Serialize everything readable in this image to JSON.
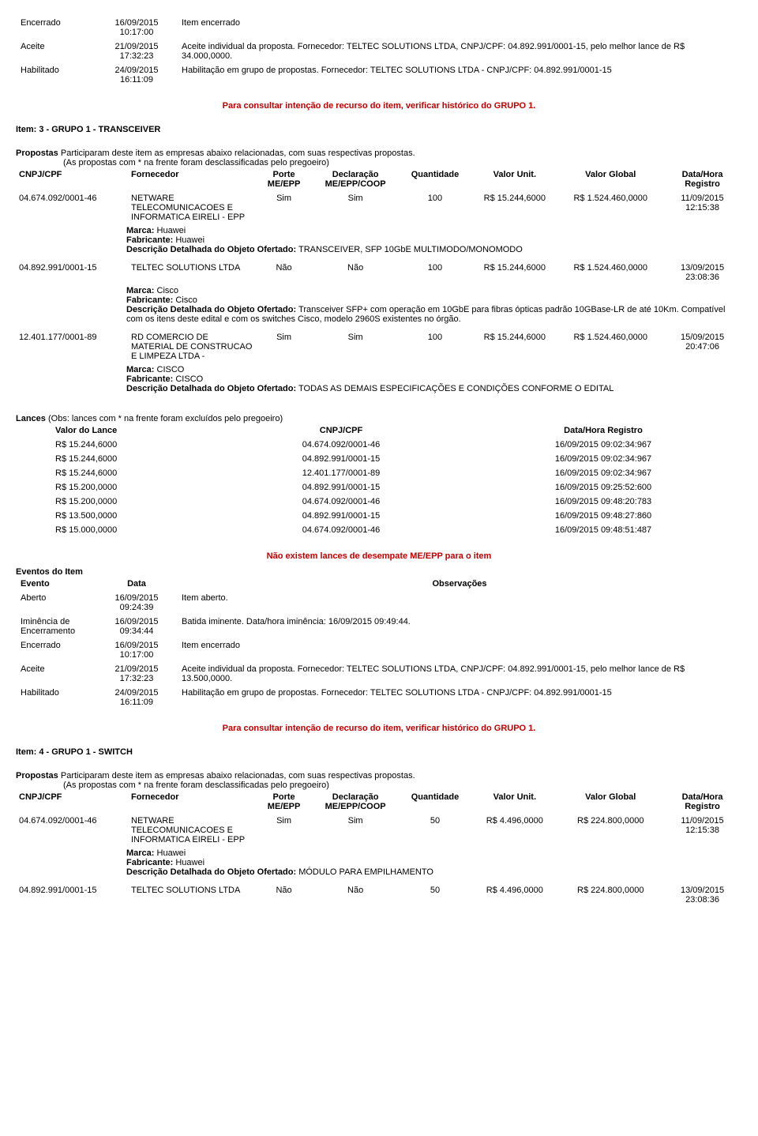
{
  "events_top": [
    {
      "status": "Encerrado",
      "date": "16/09/2015 10:17:00",
      "obs": "Item encerrado"
    },
    {
      "status": "Aceite",
      "date": "21/09/2015 17:32:23",
      "obs": "Aceite individual da proposta. Fornecedor: TELTEC SOLUTIONS LTDA, CNPJ/CPF: 04.892.991/0001-15, pelo melhor lance de R$ 34.000,0000."
    },
    {
      "status": "Habilitado",
      "date": "24/09/2015 16:11:09",
      "obs": "Habilitação em grupo de propostas. Fornecedor: TELTEC SOLUTIONS LTDA - CNPJ/CPF: 04.892.991/0001-15"
    }
  ],
  "recurso_msg": "Para consultar intenção de recurso do item, verificar histórico do GRUPO 1.",
  "item3": {
    "title": "Item: 3 - GRUPO 1 - TRANSCEIVER",
    "prop_intro_b": "Propostas",
    "prop_intro": "Participaram deste item as empresas abaixo relacionadas, com suas respectivas propostas.",
    "prop_note": "(As propostas com * na frente foram desclassificadas pelo pregoeiro)",
    "cols": {
      "cnpj": "CNPJ/CPF",
      "forn": "Fornecedor",
      "porte": "Porte ME/EPP",
      "decl": "Declaração ME/EPP/COOP",
      "qtd": "Quantidade",
      "vu": "Valor Unit.",
      "vg": "Valor Global",
      "dh": "Data/Hora Registro"
    },
    "rows": [
      {
        "cnpj": "04.674.092/0001-46",
        "forn": "NETWARE TELECOMUNICACOES E INFORMATICA EIRELI - EPP",
        "porte": "Sim",
        "decl": "Sim",
        "qtd": "100",
        "vu": "R$ 15.244,6000",
        "vg": "R$ 1.524.460,0000",
        "dh": "11/09/2015 12:15:38",
        "marca": "Huawei",
        "fab": "Huawei",
        "desc": "TRANSCEIVER, SFP 10GbE MULTIMODO/MONOMODO"
      },
      {
        "cnpj": "04.892.991/0001-15",
        "forn": "TELTEC SOLUTIONS LTDA",
        "porte": "Não",
        "decl": "Não",
        "qtd": "100",
        "vu": "R$ 15.244,6000",
        "vg": "R$ 1.524.460,0000",
        "dh": "13/09/2015 23:08:36",
        "marca": "Cisco",
        "fab": "Cisco",
        "desc": "Transceiver SFP+ com operação em 10GbE para fibras ópticas padrão 10GBase-LR de até 10Km. Compatível com os itens deste edital e com os switches Cisco, modelo 2960S existentes no órgão."
      },
      {
        "cnpj": "12.401.177/0001-89",
        "forn": "RD COMERCIO DE MATERIAL DE CONSTRUCAO E LIMPEZA LTDA -",
        "porte": "Sim",
        "decl": "Sim",
        "qtd": "100",
        "vu": "R$ 15.244,6000",
        "vg": "R$ 1.524.460,0000",
        "dh": "15/09/2015 20:47:06",
        "marca": "CISCO",
        "fab": "CISCO",
        "desc": "TODAS AS DEMAIS ESPECIFICAÇÕES E CONDIÇÕES CONFORME O EDITAL"
      }
    ],
    "lances_intro_b": "Lances",
    "lances_intro": "(Obs: lances com * na frente foram excluídos pelo pregoeiro)",
    "lcols": {
      "v": "Valor do Lance",
      "c": "CNPJ/CPF",
      "d": "Data/Hora Registro"
    },
    "lances": [
      {
        "v": "R$ 15.244,6000",
        "c": "04.674.092/0001-46",
        "d": "16/09/2015 09:02:34:967"
      },
      {
        "v": "R$ 15.244,6000",
        "c": "04.892.991/0001-15",
        "d": "16/09/2015 09:02:34:967"
      },
      {
        "v": "R$ 15.244,6000",
        "c": "12.401.177/0001-89",
        "d": "16/09/2015 09:02:34:967"
      },
      {
        "v": "R$ 15.200,0000",
        "c": "04.892.991/0001-15",
        "d": "16/09/2015 09:25:52:600"
      },
      {
        "v": "R$ 15.200,0000",
        "c": "04.674.092/0001-46",
        "d": "16/09/2015 09:48:20:783"
      },
      {
        "v": "R$ 13.500,0000",
        "c": "04.892.991/0001-15",
        "d": "16/09/2015 09:48:27:860"
      },
      {
        "v": "R$ 15.000,0000",
        "c": "04.674.092/0001-46",
        "d": "16/09/2015 09:48:51:487"
      }
    ],
    "no_desempate": "Não existem lances de desempate ME/EPP para o item",
    "ev_title": "Eventos do Item",
    "ev_cols": {
      "e": "Evento",
      "d": "Data",
      "o": "Observações"
    },
    "events": [
      {
        "status": "Aberto",
        "date": "16/09/2015 09:24:39",
        "obs": "Item aberto."
      },
      {
        "status": "Iminência de Encerramento",
        "date": "16/09/2015 09:34:44",
        "obs": "Batida iminente. Data/hora iminência: 16/09/2015 09:49:44."
      },
      {
        "status": "Encerrado",
        "date": "16/09/2015 10:17:00",
        "obs": "Item encerrado"
      },
      {
        "status": "Aceite",
        "date": "21/09/2015 17:32:23",
        "obs": "Aceite individual da proposta. Fornecedor: TELTEC SOLUTIONS LTDA, CNPJ/CPF: 04.892.991/0001-15, pelo melhor lance de R$ 13.500,0000."
      },
      {
        "status": "Habilitado",
        "date": "24/09/2015 16:11:09",
        "obs": "Habilitação em grupo de propostas. Fornecedor: TELTEC SOLUTIONS LTDA - CNPJ/CPF: 04.892.991/0001-15"
      }
    ]
  },
  "item4": {
    "title": "Item: 4 - GRUPO 1 - SWITCH",
    "rows": [
      {
        "cnpj": "04.674.092/0001-46",
        "forn": "NETWARE TELECOMUNICACOES E INFORMATICA EIRELI - EPP",
        "porte": "Sim",
        "decl": "Sim",
        "qtd": "50",
        "vu": "R$ 4.496,0000",
        "vg": "R$ 224.800,0000",
        "dh": "11/09/2015 12:15:38",
        "marca": "Huawei",
        "fab": "Huawei",
        "desc": "MÓDULO PARA EMPILHAMENTO"
      },
      {
        "cnpj": "04.892.991/0001-15",
        "forn": "TELTEC SOLUTIONS LTDA",
        "porte": "Não",
        "decl": "Não",
        "qtd": "50",
        "vu": "R$ 4.496,0000",
        "vg": "R$ 224.800,0000",
        "dh": "13/09/2015 23:08:36"
      }
    ]
  },
  "labels": {
    "marca": "Marca:",
    "fab": "Fabricante:",
    "ddoo": "Descrição Detalhada do Objeto Ofertado:"
  }
}
